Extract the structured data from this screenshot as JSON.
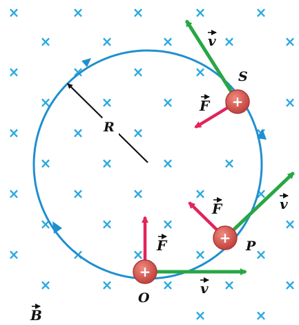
{
  "labels": {
    "field": "B",
    "radius": "R",
    "velocity_symbol": "v",
    "force_symbol": "F",
    "point_o": "O",
    "point_p": "P",
    "point_s": "S",
    "charge_sign": "+"
  },
  "colors": {
    "field_cross": "#29a9e0",
    "orbit": "#1f8fcf",
    "velocity": "#27a744",
    "force": "#e2245a",
    "charge_fill": "#d9534f",
    "charge_edge": "#a83a3a",
    "radius_line": "#111111"
  },
  "icons": {
    "field_marker": "cross-x-icon",
    "orbit_direction": "arrowhead-icon"
  }
}
